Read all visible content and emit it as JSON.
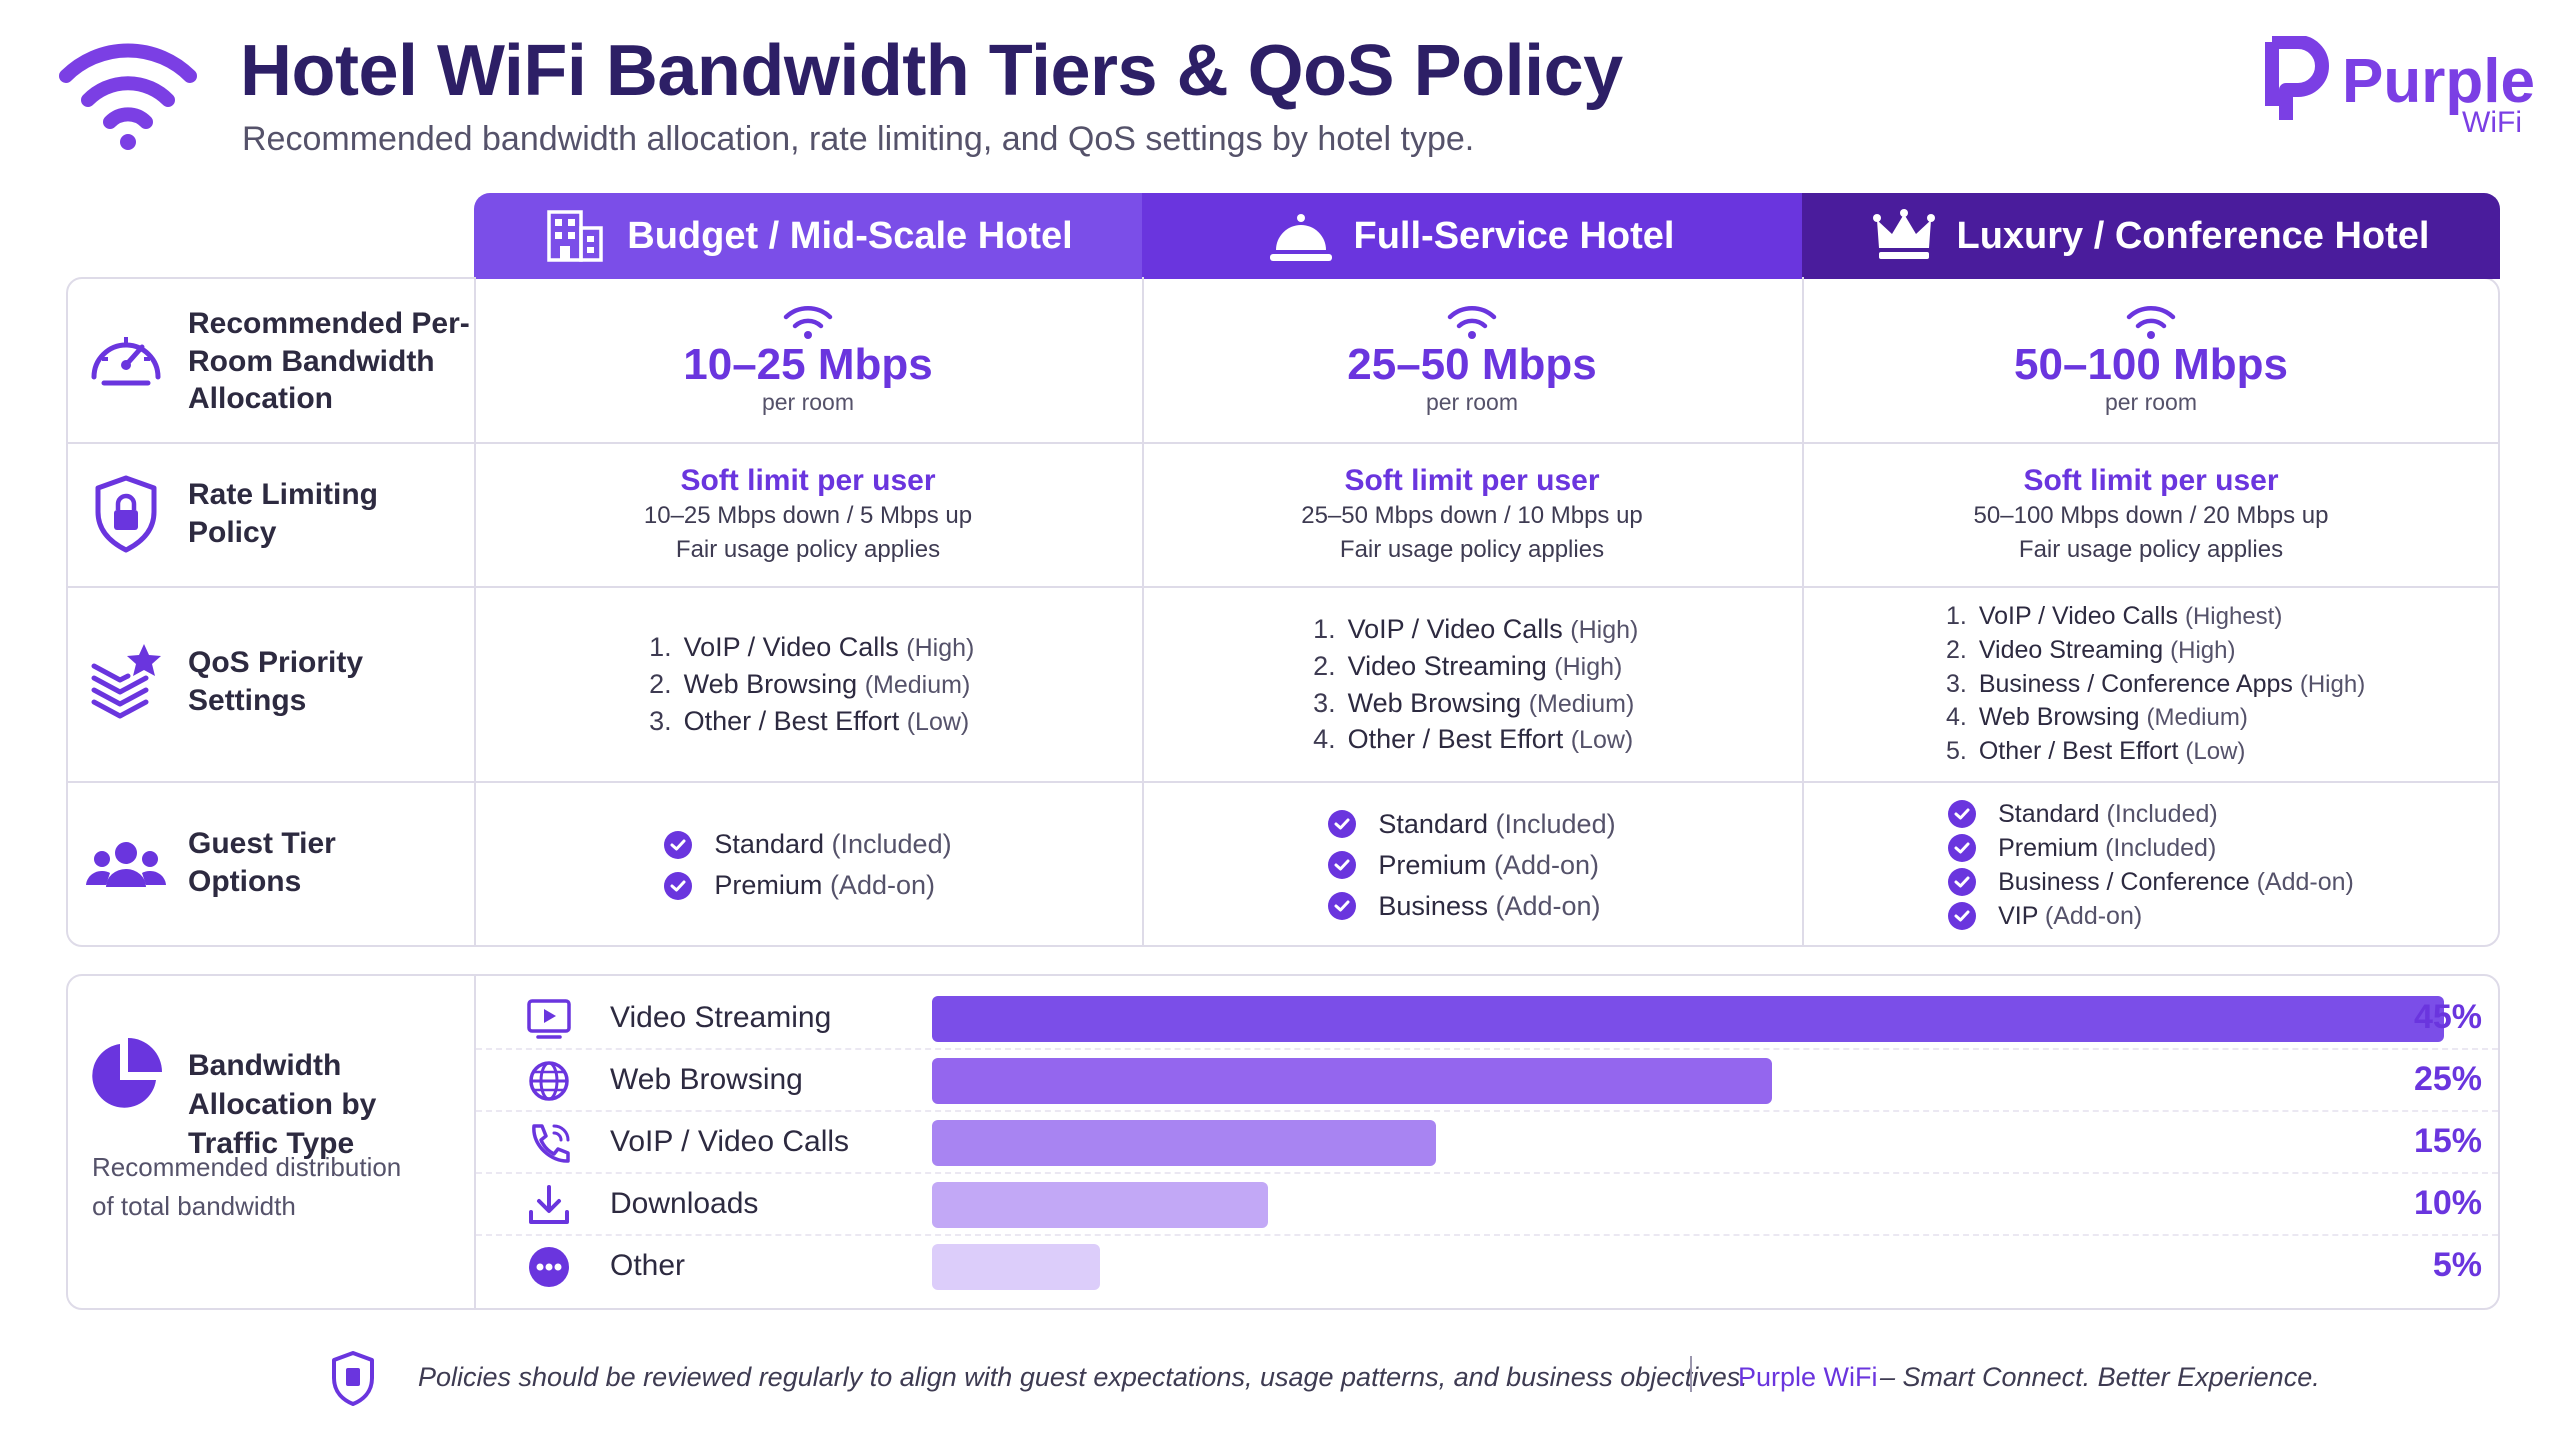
{
  "header": {
    "title": "Hotel WiFi Bandwidth Tiers & QoS Policy",
    "subtitle": "Recommended bandwidth allocation, rate limiting, and QoS settings by hotel type.",
    "logo_icon": "wifi-icon",
    "brand_name": "Purple",
    "brand_sub": "WiFi"
  },
  "colors": {
    "primary": "#6a35de",
    "header_budget": "#7b4ee8",
    "header_full": "#6a35de",
    "header_luxury": "#4a1c9c",
    "title": "#2d1f66"
  },
  "columns": [
    {
      "label": "Budget / Mid-Scale Hotel",
      "icon": "building-icon"
    },
    {
      "label": "Full-Service Hotel",
      "icon": "service-bell-icon"
    },
    {
      "label": "Luxury / Conference Hotel",
      "icon": "crown-icon"
    }
  ],
  "rows": {
    "bandwidth": {
      "label": "Recommended Per-Room Bandwidth Allocation",
      "icon": "speedometer-icon",
      "cells": [
        {
          "value": "10–25 Mbps",
          "unit": "per room"
        },
        {
          "value": "25–50 Mbps",
          "unit": "per room"
        },
        {
          "value": "50–100 Mbps",
          "unit": "per room"
        }
      ]
    },
    "rate": {
      "label": "Rate Limiting Policy",
      "icon": "shield-lock-icon",
      "cells": [
        {
          "title": "Soft limit per user",
          "detail": "10–25 Mbps down / 5 Mbps up",
          "note": "Fair usage policy applies"
        },
        {
          "title": "Soft limit per user",
          "detail": "25–50 Mbps down / 10 Mbps up",
          "note": "Fair usage policy applies"
        },
        {
          "title": "Soft limit per user",
          "detail": "50–100 Mbps down / 20 Mbps up",
          "note": "Fair usage policy applies"
        }
      ]
    },
    "qos": {
      "label": "QoS Priority Settings",
      "icon": "layers-star-icon",
      "cells": [
        {
          "items": [
            {
              "num": "1.",
              "name": "VoIP / Video Calls",
              "level": "(High)"
            },
            {
              "num": "2.",
              "name": "Web Browsing",
              "level": "(Medium)"
            },
            {
              "num": "3.",
              "name": "Other / Best Effort",
              "level": "(Low)"
            }
          ]
        },
        {
          "items": [
            {
              "num": "1.",
              "name": "VoIP / Video Calls",
              "level": "(High)"
            },
            {
              "num": "2.",
              "name": "Video Streaming",
              "level": "(High)"
            },
            {
              "num": "3.",
              "name": "Web Browsing",
              "level": "(Medium)"
            },
            {
              "num": "4.",
              "name": "Other / Best Effort",
              "level": "(Low)"
            }
          ]
        },
        {
          "items": [
            {
              "num": "1.",
              "name": "VoIP / Video Calls",
              "level": "(Highest)"
            },
            {
              "num": "2.",
              "name": "Video Streaming",
              "level": "(High)"
            },
            {
              "num": "3.",
              "name": "Business / Conference Apps",
              "level": "(High)"
            },
            {
              "num": "4.",
              "name": "Web Browsing",
              "level": "(Medium)"
            },
            {
              "num": "5.",
              "name": "Other / Best Effort",
              "level": "(Low)"
            }
          ]
        }
      ]
    },
    "guest": {
      "label": "Guest Tier Options",
      "icon": "users-icon",
      "cells": [
        {
          "items": [
            {
              "name": "Standard",
              "status": "(Included)"
            },
            {
              "name": "Premium",
              "status": "(Add-on)"
            }
          ]
        },
        {
          "items": [
            {
              "name": "Standard",
              "status": "(Included)"
            },
            {
              "name": "Premium",
              "status": "(Add-on)"
            },
            {
              "name": "Business",
              "status": "(Add-on)"
            }
          ]
        },
        {
          "items": [
            {
              "name": "Standard",
              "status": "(Included)"
            },
            {
              "name": "Premium",
              "status": "(Included)"
            },
            {
              "name": "Business / Conference",
              "status": "(Add-on)"
            },
            {
              "name": "VIP",
              "status": "(Add-on)"
            }
          ]
        }
      ]
    }
  },
  "allocation": {
    "title": "Bandwidth Allocation by Traffic Type",
    "desc_line1": "Recommended distribution",
    "desc_line2": "of total bandwidth",
    "icon": "pie-chart-icon"
  },
  "chart_data": {
    "type": "bar",
    "orientation": "horizontal",
    "title": "Bandwidth Allocation by Traffic Type",
    "categories": [
      "Video Streaming",
      "Web Browsing",
      "VoIP / Video Calls",
      "Downloads",
      "Other"
    ],
    "values": [
      45,
      25,
      15,
      10,
      5
    ],
    "value_labels": [
      "45%",
      "25%",
      "15%",
      "10%",
      "5%"
    ],
    "icons": [
      "video-play-icon",
      "globe-icon",
      "phone-icon",
      "download-icon",
      "more-icon"
    ],
    "colors": [
      "#7b4ee8",
      "#9466ee",
      "#a884f2",
      "#c2a8f6",
      "#dccdfa"
    ],
    "xlim": [
      0,
      45
    ]
  },
  "footer": {
    "note": "Policies should be reviewed regularly to align with guest expectations, usage patterns, and business objectives.",
    "brand": "Purple WiFi",
    "tagline": "– Smart Connect. Better Experience.",
    "icon": "shield-doc-icon"
  }
}
